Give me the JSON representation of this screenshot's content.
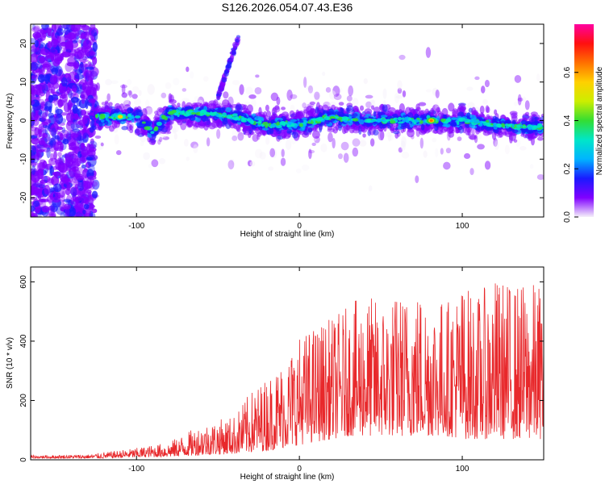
{
  "title": "S126.2026.054.07.43.E36",
  "chart_data": [
    {
      "type": "heatmap",
      "name": "spectrogram",
      "xlabel": "Height of straight line (km)",
      "ylabel": "Frequency (Hz)",
      "xlim": [
        -165,
        150
      ],
      "ylim": [
        -25,
        25
      ],
      "xticks": [
        -100,
        0,
        100
      ],
      "yticks": [
        -20,
        -10,
        0,
        10,
        20
      ],
      "xtick_labels": [
        "-100",
        "0",
        "100"
      ],
      "ytick_labels": [
        "-20",
        "-10",
        "0",
        "10",
        "20"
      ],
      "colorbar": {
        "label": "Normalized spectral amplitude",
        "ticks": [
          0.0,
          0.2,
          0.4,
          0.6
        ],
        "tick_labels": [
          "0.0",
          "0.2",
          "0.4",
          "0.6"
        ],
        "range": [
          0.0,
          0.8
        ],
        "colormap": [
          "#f5f0fa",
          "#8000ff",
          "#1a1aff",
          "#00b4ff",
          "#00e6c8",
          "#33dd33",
          "#ccee00",
          "#ffd000",
          "#ff7000",
          "#ff1010",
          "#ff00a0"
        ]
      },
      "features": [
        {
          "desc": "main echo trace",
          "x": [
            -125,
            -110,
            -100,
            -90,
            -80,
            -60,
            -40,
            -20,
            0,
            20,
            40,
            60,
            80,
            100,
            120,
            150
          ],
          "freq": [
            1,
            1,
            1,
            -3,
            2,
            2,
            1,
            -1,
            -1,
            1,
            0,
            0,
            0,
            0,
            -1,
            -2
          ]
        },
        {
          "desc": "diagonal streak",
          "x": [
            -50,
            -44,
            -37
          ],
          "freq": [
            6,
            15,
            22
          ]
        },
        {
          "desc": "peak",
          "x": -110,
          "freq": 1,
          "amplitude": 0.65
        },
        {
          "desc": "peak",
          "x": 81,
          "freq": 0,
          "amplitude": 0.8
        }
      ]
    },
    {
      "type": "line",
      "name": "snr",
      "xlabel": "Height of straight line (km)",
      "ylabel": "SNR (10 * v/v)",
      "xlim": [
        -165,
        150
      ],
      "ylim": [
        0,
        650
      ],
      "xticks": [
        -100,
        0,
        100
      ],
      "yticks": [
        0,
        200,
        400,
        600
      ],
      "xtick_labels": [
        "-100",
        "0",
        "100"
      ],
      "ytick_labels": [
        "0",
        "200",
        "400",
        "600"
      ],
      "color": "#e8282b",
      "envelope": {
        "x": [
          -165,
          -130,
          -120,
          -100,
          -80,
          -60,
          -40,
          -30,
          -20,
          -10,
          0,
          10,
          20,
          30,
          40,
          50,
          60,
          70,
          80,
          90,
          100,
          110,
          120,
          130,
          140,
          150
        ],
        "min": [
          5,
          5,
          5,
          8,
          10,
          15,
          20,
          25,
          30,
          40,
          50,
          60,
          70,
          80,
          80,
          80,
          80,
          80,
          80,
          80,
          70,
          70,
          70,
          70,
          70,
          70
        ],
        "max": [
          15,
          18,
          25,
          40,
          60,
          120,
          150,
          230,
          280,
          340,
          420,
          460,
          480,
          520,
          560,
          540,
          560,
          580,
          580,
          540,
          600,
          560,
          620,
          600,
          600,
          600
        ]
      }
    }
  ]
}
